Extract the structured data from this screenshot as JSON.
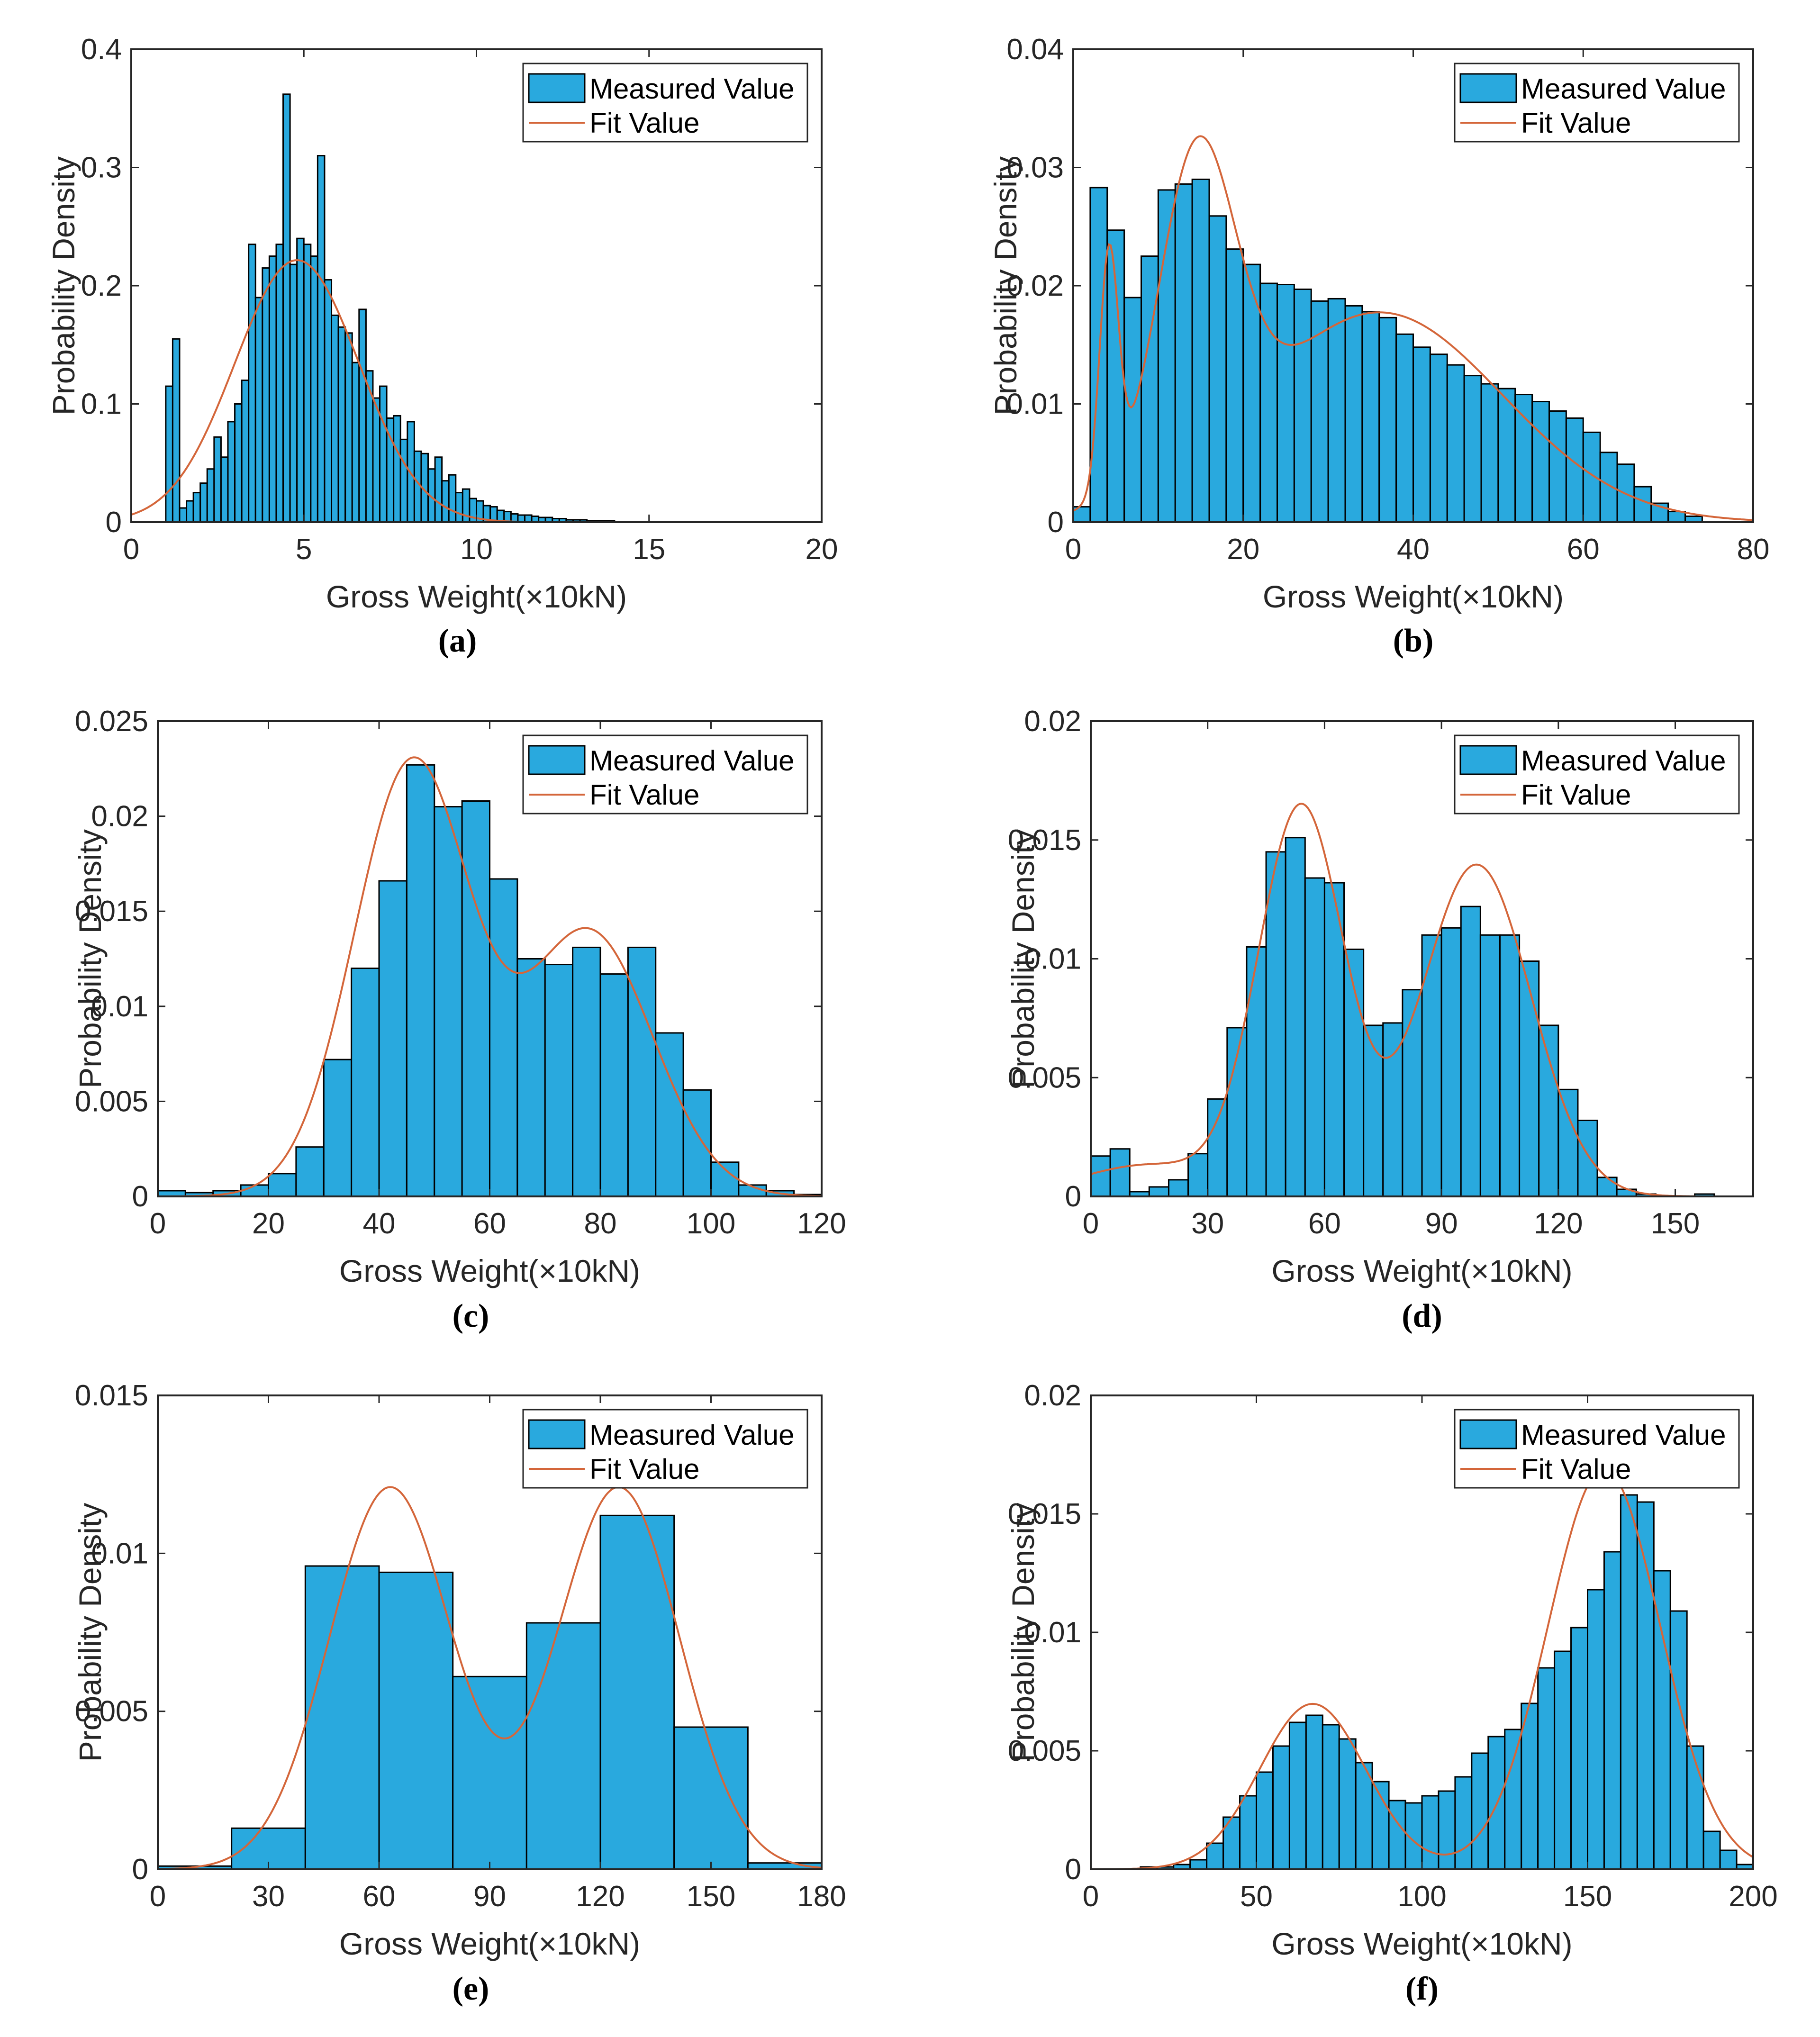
{
  "figure": {
    "ylabel": "Probability Density",
    "xlabel": "Gross Weight(×10kN)",
    "legend_measured": "Measured Value",
    "legend_fit": "Fit Value",
    "legend_position": "top-right",
    "bar_color": "#29a9de",
    "bar_edge_color": "#000000",
    "fit_color": "#d4663a",
    "axis_color": "#262626"
  },
  "chart_data": [
    {
      "id": "a",
      "type": "bar",
      "title": "",
      "caption": "(a)",
      "xlabel": "Gross Weight(×10kN)",
      "ylabel": "Probability Density",
      "xlim": [
        0,
        20
      ],
      "ylim": [
        0,
        0.4
      ],
      "xticks": [
        0,
        5,
        10,
        15,
        20
      ],
      "xtick_labels": [
        "0",
        "5",
        "10",
        "15",
        "20"
      ],
      "yticks": [
        0,
        0.1,
        0.2,
        0.3,
        0.4
      ],
      "ytick_labels": [
        "0",
        "0.1",
        "0.2",
        "0.3",
        "0.4"
      ],
      "bin_start": 1.0,
      "bin_width": 0.2,
      "measured_values": [
        0.115,
        0.155,
        0.012,
        0.018,
        0.025,
        0.033,
        0.045,
        0.072,
        0.055,
        0.085,
        0.1,
        0.12,
        0.235,
        0.19,
        0.215,
        0.225,
        0.235,
        0.362,
        0.218,
        0.24,
        0.235,
        0.225,
        0.31,
        0.205,
        0.175,
        0.165,
        0.16,
        0.135,
        0.18,
        0.128,
        0.105,
        0.115,
        0.088,
        0.09,
        0.07,
        0.085,
        0.06,
        0.058,
        0.045,
        0.055,
        0.035,
        0.04,
        0.025,
        0.028,
        0.02,
        0.018,
        0.014,
        0.013,
        0.01,
        0.009,
        0.007,
        0.006,
        0.006,
        0.005,
        0.004,
        0.004,
        0.003,
        0.003,
        0.002,
        0.002,
        0.002,
        0.001,
        0.001,
        0.001,
        0.001
      ],
      "fit_components": [
        {
          "weight": 1.0,
          "mean": 4.8,
          "sd": 1.8
        }
      ]
    },
    {
      "id": "b",
      "type": "bar",
      "title": "",
      "caption": "(b)",
      "xlabel": "Gross Weight(×10kN)",
      "ylabel": "Probability Density",
      "xlim": [
        0,
        80
      ],
      "ylim": [
        0,
        0.04
      ],
      "xticks": [
        0,
        20,
        40,
        60,
        80
      ],
      "xtick_labels": [
        "0",
        "20",
        "40",
        "60",
        "80"
      ],
      "yticks": [
        0,
        0.01,
        0.02,
        0.03,
        0.04
      ],
      "ytick_labels": [
        "0",
        "0.01",
        "0.02",
        "0.03",
        "0.04"
      ],
      "bin_start": 0,
      "bin_width": 2,
      "measured_values": [
        0.0013,
        0.0283,
        0.0247,
        0.019,
        0.0225,
        0.0281,
        0.0286,
        0.029,
        0.0259,
        0.0231,
        0.0218,
        0.0202,
        0.0201,
        0.0197,
        0.0187,
        0.0189,
        0.0183,
        0.0178,
        0.0173,
        0.0159,
        0.0148,
        0.0142,
        0.0133,
        0.0124,
        0.0117,
        0.0113,
        0.0108,
        0.0102,
        0.0094,
        0.0088,
        0.0076,
        0.0059,
        0.0049,
        0.003,
        0.0016,
        0.0009,
        0.0005
      ],
      "fit_components": [
        {
          "weight": 0.055,
          "mean": 4.2,
          "sd": 1.1
        },
        {
          "weight": 0.3,
          "mean": 14.5,
          "sd": 4.5
        },
        {
          "weight": 0.645,
          "mean": 36,
          "sd": 14.5
        }
      ]
    },
    {
      "id": "c",
      "type": "bar",
      "title": "",
      "caption": "(c)",
      "xlabel": "Gross Weight(×10kN)",
      "ylabel": "Probability Density",
      "xlim": [
        0,
        120
      ],
      "ylim": [
        0,
        0.025
      ],
      "xticks": [
        0,
        20,
        40,
        60,
        80,
        100,
        120
      ],
      "xtick_labels": [
        "0",
        "20",
        "40",
        "60",
        "80",
        "100",
        "120"
      ],
      "yticks": [
        0,
        0.005,
        0.01,
        0.015,
        0.02,
        0.025
      ],
      "ytick_labels": [
        "0",
        "0.005",
        "0.01",
        "0.015",
        "0.02",
        "0.025"
      ],
      "bin_start": 0,
      "bin_width": 5,
      "measured_values": [
        0.0003,
        0.0002,
        0.0003,
        0.0006,
        0.0012,
        0.0026,
        0.0072,
        0.012,
        0.0166,
        0.0227,
        0.0205,
        0.0208,
        0.0167,
        0.0125,
        0.0122,
        0.0131,
        0.0117,
        0.0131,
        0.0086,
        0.0056,
        0.0018,
        0.0006,
        0.0003,
        0.0001
      ],
      "fit_components": [
        {
          "weight": 0.6,
          "mean": 46,
          "sd": 10.5
        },
        {
          "weight": 0.4,
          "mean": 78,
          "sd": 11.5
        }
      ]
    },
    {
      "id": "d",
      "type": "bar",
      "title": "",
      "caption": "(d)",
      "xlabel": "Gross Weight(×10kN)",
      "ylabel": "Probability Density",
      "xlim": [
        0,
        170
      ],
      "ylim": [
        0,
        0.02
      ],
      "xticks": [
        0,
        30,
        60,
        90,
        120,
        150
      ],
      "xtick_labels": [
        "0",
        "30",
        "60",
        "90",
        "120",
        "150"
      ],
      "yticks": [
        0,
        0.005,
        0.01,
        0.015,
        0.02
      ],
      "ytick_labels": [
        "0",
        "0.005",
        "0.01",
        "0.015",
        "0.02"
      ],
      "bin_start": 0,
      "bin_width": 5,
      "measured_values": [
        0.0017,
        0.002,
        0.0002,
        0.0004,
        0.0007,
        0.0018,
        0.0041,
        0.0071,
        0.0105,
        0.0145,
        0.0151,
        0.0134,
        0.0132,
        0.0104,
        0.0072,
        0.0073,
        0.0087,
        0.011,
        0.0113,
        0.0122,
        0.011,
        0.011,
        0.0099,
        0.0072,
        0.0045,
        0.0032,
        0.0008,
        0.0003,
        0.0001,
        0.0,
        0.0,
        0.0001
      ],
      "fit_components": [
        {
          "weight": 0.06,
          "mean": 15,
          "sd": 18
        },
        {
          "weight": 0.45,
          "mean": 54,
          "sd": 11
        },
        {
          "weight": 0.49,
          "mean": 99,
          "sd": 14
        }
      ]
    },
    {
      "id": "e",
      "type": "bar",
      "title": "",
      "caption": "(e)",
      "xlabel": "Gross Weight(×10kN)",
      "ylabel": "Probability Density",
      "xlim": [
        0,
        180
      ],
      "ylim": [
        0,
        0.015
      ],
      "xticks": [
        0,
        30,
        60,
        90,
        120,
        150,
        180
      ],
      "xtick_labels": [
        "0",
        "30",
        "60",
        "90",
        "120",
        "150",
        "180"
      ],
      "yticks": [
        0,
        0.005,
        0.01,
        0.015
      ],
      "ytick_labels": [
        "0",
        "0.005",
        "0.01",
        "0.015"
      ],
      "bin_start": 0,
      "bin_width": 20,
      "measured_values": [
        0.0001,
        0.0013,
        0.0096,
        0.0094,
        0.0061,
        0.0078,
        0.0112,
        0.0045,
        0.0002
      ],
      "fit_components": [
        {
          "weight": 0.5,
          "mean": 63,
          "sd": 16.5
        },
        {
          "weight": 0.5,
          "mean": 125,
          "sd": 16.5
        }
      ]
    },
    {
      "id": "f",
      "type": "bar",
      "title": "",
      "caption": "(f)",
      "xlabel": "Gross Weight(×10kN)",
      "ylabel": "Probability Density",
      "xlim": [
        0,
        200
      ],
      "ylim": [
        0,
        0.02
      ],
      "xticks": [
        0,
        50,
        100,
        150,
        200
      ],
      "xtick_labels": [
        "0",
        "50",
        "100",
        "150",
        "200"
      ],
      "yticks": [
        0,
        0.005,
        0.01,
        0.015,
        0.02
      ],
      "ytick_labels": [
        "0",
        "0.005",
        "0.01",
        "0.015",
        "0.02"
      ],
      "bin_start": 15,
      "bin_width": 5,
      "measured_values": [
        0.0001,
        0.0001,
        0.0002,
        0.0004,
        0.0011,
        0.0022,
        0.0031,
        0.0041,
        0.0052,
        0.0062,
        0.0065,
        0.0061,
        0.0055,
        0.0045,
        0.0037,
        0.0029,
        0.0028,
        0.0031,
        0.0033,
        0.0039,
        0.0049,
        0.0056,
        0.0059,
        0.007,
        0.0085,
        0.0092,
        0.0102,
        0.0118,
        0.0134,
        0.0158,
        0.0155,
        0.0126,
        0.0109,
        0.0052,
        0.0016,
        0.0008,
        0.0002
      ],
      "fit_components": [
        {
          "weight": 0.28,
          "mean": 67,
          "sd": 16
        },
        {
          "weight": 0.72,
          "mean": 155,
          "sd": 17
        }
      ]
    }
  ]
}
